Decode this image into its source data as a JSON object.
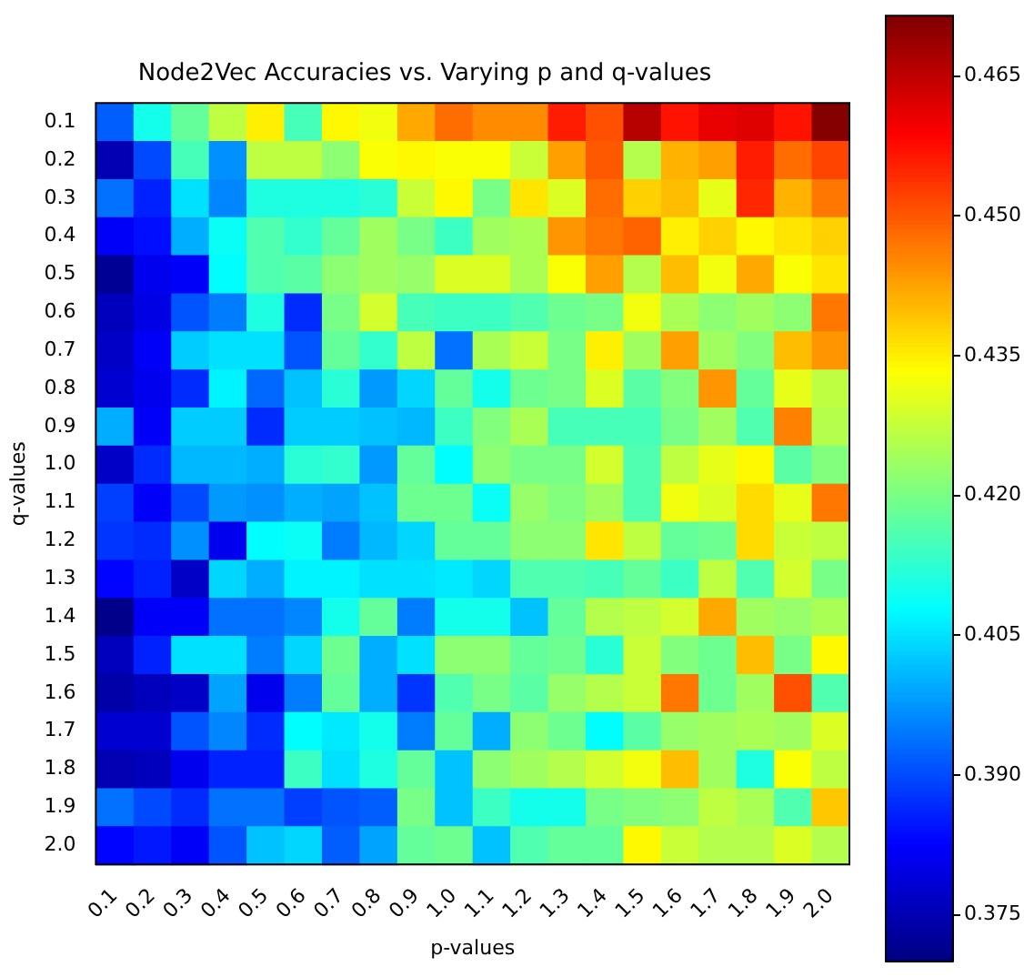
{
  "chart_data": {
    "type": "heatmap",
    "title": "Node2Vec Accuracies vs. Varying p and q-values",
    "xlabel": "p-values",
    "ylabel": "q-values",
    "categories": [
      "0.1",
      "0.2",
      "0.3",
      "0.4",
      "0.5",
      "0.6",
      "0.7",
      "0.8",
      "0.9",
      "1.0",
      "1.1",
      "1.2",
      "1.3",
      "1.4",
      "1.5",
      "1.6",
      "1.7",
      "1.8",
      "1.9",
      "2.0"
    ],
    "y_categories": [
      "0.1",
      "0.2",
      "0.3",
      "0.4",
      "0.5",
      "0.6",
      "0.7",
      "0.8",
      "0.9",
      "1.0",
      "1.1",
      "1.2",
      "1.3",
      "1.4",
      "1.5",
      "1.6",
      "1.7",
      "1.8",
      "1.9",
      "2.0"
    ],
    "cells": [
      [
        0.392,
        0.41,
        0.418,
        0.427,
        0.435,
        0.415,
        0.434,
        0.432,
        0.442,
        0.448,
        0.445,
        0.445,
        0.456,
        0.451,
        0.466,
        0.457,
        0.461,
        0.462,
        0.457,
        0.471
      ],
      [
        0.375,
        0.39,
        0.415,
        0.397,
        0.427,
        0.427,
        0.422,
        0.433,
        0.434,
        0.433,
        0.433,
        0.428,
        0.443,
        0.45,
        0.426,
        0.441,
        0.443,
        0.456,
        0.448,
        0.452
      ],
      [
        0.394,
        0.386,
        0.405,
        0.396,
        0.411,
        0.411,
        0.411,
        0.412,
        0.428,
        0.434,
        0.42,
        0.436,
        0.43,
        0.448,
        0.438,
        0.44,
        0.431,
        0.455,
        0.441,
        0.447
      ],
      [
        0.382,
        0.384,
        0.4,
        0.409,
        0.416,
        0.413,
        0.418,
        0.424,
        0.42,
        0.414,
        0.424,
        0.425,
        0.444,
        0.447,
        0.449,
        0.435,
        0.438,
        0.434,
        0.436,
        0.438
      ],
      [
        0.372,
        0.381,
        0.382,
        0.408,
        0.416,
        0.417,
        0.422,
        0.424,
        0.423,
        0.43,
        0.43,
        0.425,
        0.433,
        0.443,
        0.426,
        0.44,
        0.432,
        0.442,
        0.433,
        0.436
      ],
      [
        0.376,
        0.38,
        0.391,
        0.395,
        0.411,
        0.387,
        0.42,
        0.429,
        0.415,
        0.414,
        0.414,
        0.416,
        0.419,
        0.42,
        0.432,
        0.425,
        0.422,
        0.424,
        0.422,
        0.447
      ],
      [
        0.377,
        0.382,
        0.403,
        0.405,
        0.405,
        0.391,
        0.418,
        0.413,
        0.427,
        0.394,
        0.425,
        0.428,
        0.42,
        0.435,
        0.424,
        0.443,
        0.424,
        0.421,
        0.44,
        0.444
      ],
      [
        0.378,
        0.381,
        0.387,
        0.407,
        0.393,
        0.402,
        0.412,
        0.398,
        0.404,
        0.418,
        0.41,
        0.419,
        0.42,
        0.43,
        0.417,
        0.421,
        0.444,
        0.418,
        0.431,
        0.427
      ],
      [
        0.4,
        0.382,
        0.403,
        0.403,
        0.387,
        0.403,
        0.403,
        0.402,
        0.401,
        0.414,
        0.421,
        0.425,
        0.415,
        0.415,
        0.415,
        0.42,
        0.424,
        0.416,
        0.446,
        0.426
      ],
      [
        0.377,
        0.387,
        0.401,
        0.401,
        0.4,
        0.412,
        0.413,
        0.398,
        0.418,
        0.408,
        0.422,
        0.42,
        0.42,
        0.429,
        0.416,
        0.427,
        0.431,
        0.434,
        0.417,
        0.421
      ],
      [
        0.389,
        0.382,
        0.39,
        0.398,
        0.397,
        0.4,
        0.399,
        0.402,
        0.419,
        0.419,
        0.409,
        0.423,
        0.421,
        0.424,
        0.416,
        0.432,
        0.43,
        0.437,
        0.431,
        0.447
      ],
      [
        0.388,
        0.387,
        0.397,
        0.381,
        0.408,
        0.409,
        0.395,
        0.401,
        0.404,
        0.418,
        0.418,
        0.422,
        0.422,
        0.436,
        0.427,
        0.418,
        0.419,
        0.437,
        0.428,
        0.427
      ],
      [
        0.383,
        0.386,
        0.377,
        0.404,
        0.4,
        0.407,
        0.407,
        0.405,
        0.405,
        0.406,
        0.404,
        0.416,
        0.416,
        0.415,
        0.418,
        0.414,
        0.427,
        0.416,
        0.429,
        0.42
      ],
      [
        0.371,
        0.382,
        0.382,
        0.394,
        0.394,
        0.396,
        0.41,
        0.418,
        0.395,
        0.41,
        0.41,
        0.402,
        0.418,
        0.426,
        0.427,
        0.429,
        0.442,
        0.424,
        0.423,
        0.425
      ],
      [
        0.376,
        0.386,
        0.405,
        0.405,
        0.395,
        0.404,
        0.419,
        0.4,
        0.405,
        0.422,
        0.422,
        0.418,
        0.419,
        0.412,
        0.428,
        0.421,
        0.419,
        0.44,
        0.42,
        0.434
      ],
      [
        0.374,
        0.376,
        0.377,
        0.399,
        0.381,
        0.395,
        0.418,
        0.4,
        0.388,
        0.416,
        0.42,
        0.417,
        0.423,
        0.426,
        0.428,
        0.447,
        0.419,
        0.424,
        0.451,
        0.416
      ],
      [
        0.378,
        0.378,
        0.391,
        0.396,
        0.387,
        0.408,
        0.406,
        0.41,
        0.395,
        0.418,
        0.4,
        0.422,
        0.419,
        0.408,
        0.417,
        0.423,
        0.424,
        0.425,
        0.424,
        0.43
      ],
      [
        0.375,
        0.376,
        0.381,
        0.386,
        0.386,
        0.414,
        0.405,
        0.411,
        0.418,
        0.402,
        0.422,
        0.424,
        0.426,
        0.429,
        0.432,
        0.44,
        0.424,
        0.411,
        0.433,
        0.427
      ],
      [
        0.394,
        0.39,
        0.387,
        0.394,
        0.394,
        0.389,
        0.391,
        0.392,
        0.42,
        0.402,
        0.414,
        0.41,
        0.41,
        0.42,
        0.421,
        0.422,
        0.427,
        0.425,
        0.416,
        0.439
      ],
      [
        0.383,
        0.385,
        0.382,
        0.391,
        0.402,
        0.404,
        0.392,
        0.399,
        0.418,
        0.419,
        0.402,
        0.416,
        0.418,
        0.418,
        0.434,
        0.428,
        0.426,
        0.426,
        0.43,
        0.426
      ]
    ],
    "clim": [
      0.37,
      0.4715
    ],
    "cticks": [
      0.375,
      {
        "value": 0.39,
        "label": "0.390"
      },
      0.405,
      {
        "value": 0.42,
        "label": "0.420"
      },
      0.435,
      {
        "value": 0.45,
        "label": "0.450"
      },
      0.465
    ]
  }
}
